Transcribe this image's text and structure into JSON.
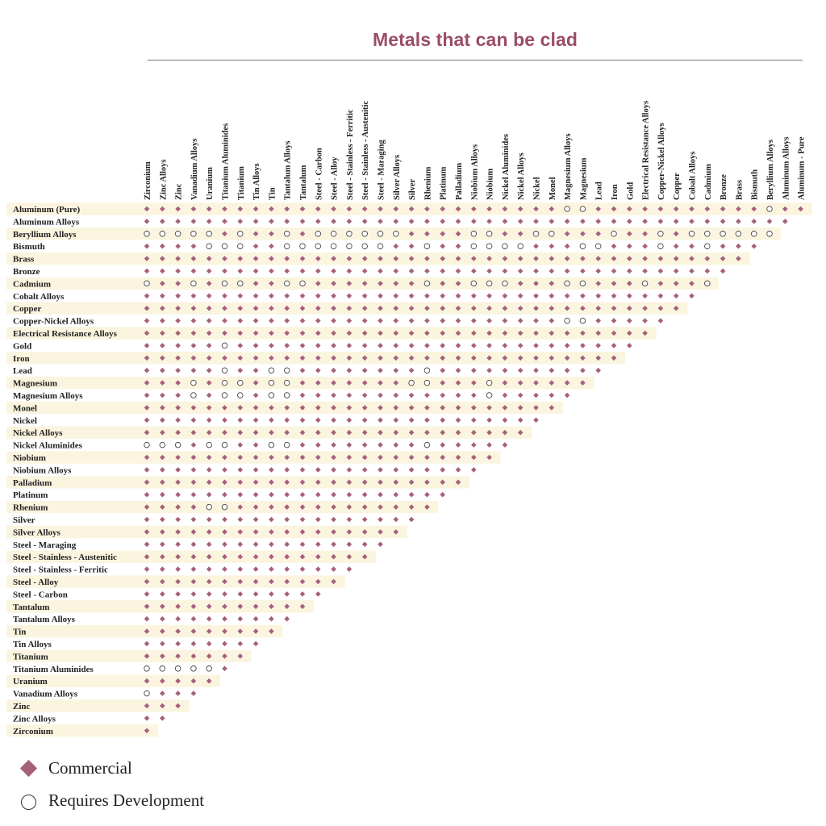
{
  "colors": {
    "accent": "#9a4d68",
    "commercial": "#a7607b",
    "band": "#fbf5e0",
    "text": "#222222"
  },
  "chart_data": {
    "type": "table",
    "title": "Metals that can be clad",
    "columns": [
      "Zirconium",
      "Zinc Alloys",
      "Zinc",
      "Vanadium Alloys",
      "Uranium",
      "Titanium Aluminides",
      "Titanium",
      "Tin Alloys",
      "Tin",
      "Tantalum Alloys",
      "Tantalum",
      "Steel - Carbon",
      "Steel - Alloy",
      "Steel - Stainless - Ferritic",
      "Steel - Stainless - Austenitic",
      "Steel - Maraging",
      "Silver Alloys",
      "Silver",
      "Rhenium",
      "Platinum",
      "Palladium",
      "Niobium Alloys",
      "Niobium",
      "Nickel Aluminides",
      "Nickel Alloys",
      "Nickel",
      "Monel",
      "Magnesium Alloys",
      "Magnesium",
      "Lead",
      "Iron",
      "Gold",
      "Electrical Resistance Alloys",
      "Copper-Nickel Alloys",
      "Copper",
      "Cobalt Alloys",
      "Cadmium",
      "Bronze",
      "Brass",
      "Bismuth",
      "Beryllium Alloys",
      "Aluminum Alloys",
      "Aluminum - Pure"
    ],
    "rows": [
      "Aluminum (Pure)",
      "Aluminum Alloys",
      "Beryllium Alloys",
      "Bismuth",
      "Brass",
      "Bronze",
      "Cadmium",
      "Cobalt Alloys",
      "Copper",
      "Copper-Nickel Alloys",
      "Electrical Resistance Alloys",
      "Gold",
      "Iron",
      "Lead",
      "Magnesium",
      "Magnesium Alloys",
      "Monel",
      "Nickel",
      "Nickel Alloys",
      "Nickel Aluminides",
      "Niobium",
      "Niobium Alloys",
      "Palladium",
      "Platinum",
      "Rhenium",
      "Silver",
      "Silver Alloys",
      "Steel - Maraging",
      "Steel - Stainless - Austenitic",
      "Steel - Stainless - Ferritic",
      "Steel - Alloy",
      "Steel - Carbon",
      "Tantalum",
      "Tantalum Alloys",
      "Tin",
      "Tin Alloys",
      "Titanium",
      "Titanium Aluminides",
      "Uranium",
      "Vanadium Alloys",
      "Zinc",
      "Zinc Alloys",
      "Zirconium"
    ],
    "cell_legend": {
      "D": "Commercial",
      "O": "Requires Development"
    },
    "cells": [
      "DDDDDDDDDDDDDDDDDDDDDDDDDDDOODDDDDDDDDDDODD",
      "DDDDDDDDDDDDDDDDDDDDDDDDDDDDDDDDDDDDDDDDDD",
      "OOOOODODDODOOOOOODDDDOODDOODDDODDODOOOOOO",
      "DDDDOOODDOOOOOOODDODDOOOODDDOODDDODDODDD",
      "DDDDDDDDDDDDDDDDDDDDDDDDDDDDDDDDDDDDDDD",
      "DDDDDDDDDDDDDDDDDDDDDDDDDDDDDDDDDDDDDD",
      "ODDODOODDOODDDDDDDODDOOODDDOODDDODDDO",
      "DDDDDDDDDDDDDDDDDDDDDDDDDDDDDDDDDDDD",
      "DDDDDDDDDDDDDDDDDDDDDDDDDDDDDDDDDDD",
      "DDDDDDDDDDDDDDDDDDDDDDDDDDDOODDDDD",
      "DDDDDDDDDDDDDDDDDDDDDDDDDDDDDDDDD",
      "DDDDDODDDDDDDDDDDDDDDDDDDDDDDDDD",
      "DDDDDDDDDDDDDDDDDDDDDDDDDDDDDDD",
      "DDDDDODDOODDDDDDDDODDDDDDDDDDD",
      "DDDODOODOODDDDDDDOODDDODDDDDD",
      "DDDODOODOODDDDDDDDDDDDODDDDD",
      "DDDDDDDDDDDDDDDDDDDDDDDDDDD",
      "DDDDDDDDDDDDDDDDDDDDDDDDDD",
      "DDDDDDDDDDDDDDDDDDDDDDDDD",
      "OOODOODDOODDDDDDDDODDDDD",
      "DDDDDDDDDDDDDDDDDDDDDDD",
      "DDDDDDDDDDDDDDDDDDDDDD",
      "DDDDDDDDDDDDDDDDDDDDD",
      "DDDDDDDDDDDDDDDDDDDD",
      "DDDDOODDDDDDDDDDDDD",
      "DDDDDDDDDDDDDDDDDD",
      "DDDDDDDDDDDDDDDDD",
      "DDDDDDDDDDDDDDDD",
      "DDDDDDDDDDDDDDD",
      "DDDDDDDDDDDDDD",
      "DDDDDDDDDDDDD",
      "DDDDDDDDDDDD",
      "DDDDDDDDDDD",
      "DDDDDDDDDD",
      "DDDDDDDDD",
      "DDDDDDDD",
      "DDDDDDD",
      "OOOOOD",
      "DDDDD",
      "ODDD",
      "DDD",
      "DD",
      "D"
    ]
  },
  "legend": {
    "commercial_label": "Commercial",
    "development_label": "Requires Development"
  }
}
